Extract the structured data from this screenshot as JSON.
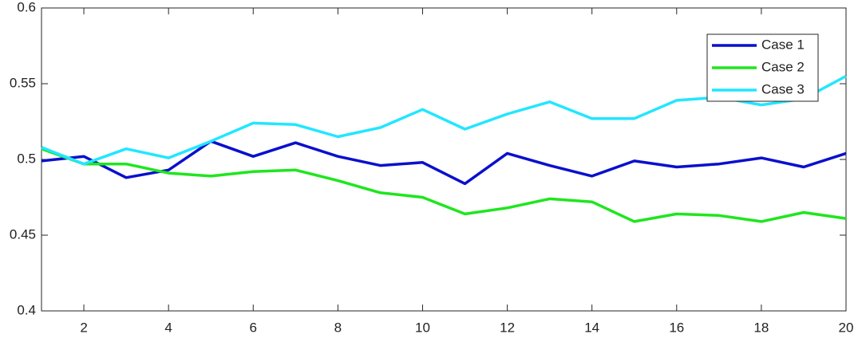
{
  "chart_data": {
    "type": "line",
    "x": [
      1,
      2,
      3,
      4,
      5,
      6,
      7,
      8,
      9,
      10,
      11,
      12,
      13,
      14,
      15,
      16,
      17,
      18,
      19,
      20
    ],
    "series": [
      {
        "name": "Case 1",
        "color": "#0a10cc",
        "values": [
          0.499,
          0.502,
          0.488,
          0.493,
          0.512,
          0.502,
          0.511,
          0.502,
          0.496,
          0.498,
          0.484,
          0.504,
          0.496,
          0.489,
          0.499,
          0.495,
          0.497,
          0.501,
          0.495,
          0.504
        ]
      },
      {
        "name": "Case 2",
        "color": "#1ee61e",
        "values": [
          0.507,
          0.497,
          0.497,
          0.491,
          0.489,
          0.492,
          0.493,
          0.486,
          0.478,
          0.475,
          0.464,
          0.468,
          0.474,
          0.472,
          0.459,
          0.464,
          0.463,
          0.459,
          0.465,
          0.461
        ]
      },
      {
        "name": "Case 3",
        "color": "#22e6ff",
        "values": [
          0.508,
          0.497,
          0.507,
          0.501,
          0.512,
          0.524,
          0.523,
          0.515,
          0.521,
          0.533,
          0.52,
          0.53,
          0.538,
          0.527,
          0.527,
          0.539,
          0.541,
          0.536,
          0.54,
          0.555
        ]
      }
    ],
    "xlim": [
      1,
      20
    ],
    "xticks": [
      2,
      4,
      6,
      8,
      10,
      12,
      14,
      16,
      18,
      20
    ],
    "ylim": [
      0.4,
      0.6
    ],
    "yticks": [
      0.4,
      0.45,
      0.5,
      0.55,
      0.6
    ],
    "legend": "upper-right"
  }
}
